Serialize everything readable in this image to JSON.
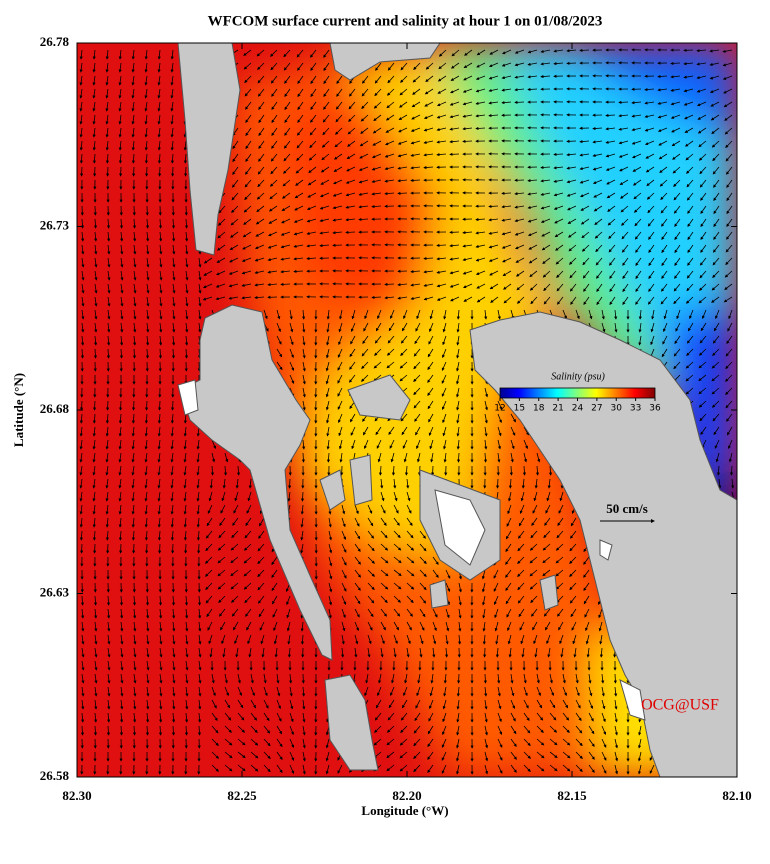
{
  "chart_data": {
    "type": "map",
    "title": "WFCOM surface current and salinity at hour 1 on 01/08/2023",
    "x_label": "Longitude (°W)",
    "y_label": "Latitude (°N)",
    "xlim": [
      82.3,
      82.1
    ],
    "xticks": [
      {
        "value": 82.3,
        "label": "82.30"
      },
      {
        "value": 82.25,
        "label": "82.25"
      },
      {
        "value": 82.2,
        "label": "82.20"
      },
      {
        "value": 82.15,
        "label": "82.15"
      },
      {
        "value": 82.1,
        "label": "82.10"
      }
    ],
    "ylim": [
      26.58,
      26.78
    ],
    "yticks": [
      26.58,
      26.63,
      26.68,
      26.73,
      26.78
    ],
    "colorbar": {
      "title": "Salinity (psu)",
      "lim": [
        12,
        36
      ],
      "ticks": [
        12,
        15,
        18,
        21,
        24,
        27,
        30,
        33,
        36
      ]
    },
    "scale_label": "50 cm/s",
    "credit": "OCG@USF"
  }
}
